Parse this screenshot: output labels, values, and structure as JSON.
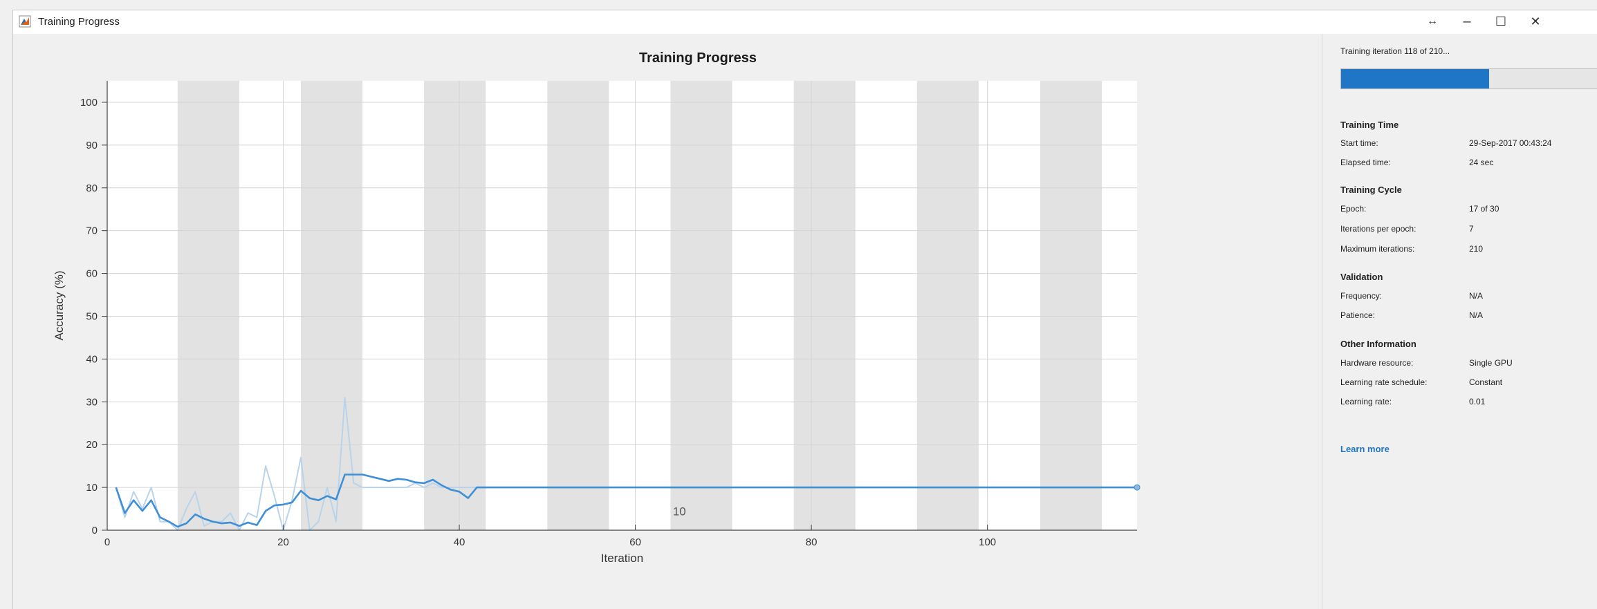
{
  "window": {
    "title": "Training Progress",
    "controls": {
      "resize": "↔",
      "minimize": "–",
      "maximize": "☐",
      "close": "✕"
    }
  },
  "plot": {
    "title": "Training Progress"
  },
  "chart_data": {
    "type": "line",
    "title": "Training Progress",
    "xlabel": "Iteration",
    "ylabel": "Accuracy (%)",
    "xlim": [
      0,
      117
    ],
    "ylim": [
      0,
      105
    ],
    "xticks": [
      0,
      20,
      40,
      60,
      80,
      100
    ],
    "yticks": [
      0,
      10,
      20,
      30,
      40,
      50,
      60,
      70,
      80,
      90,
      100
    ],
    "grid": true,
    "epoch_length": 7,
    "epoch_shading": "alternating gray bands per epoch",
    "annotation": "10",
    "annotation_x": 65,
    "annotation_y": 3.5,
    "colors": {
      "smoothed": "#3e8fd6",
      "raw": "#b8d3ea",
      "band": "#e2e2e2",
      "grid": "#d4d4d4"
    },
    "series": [
      {
        "name": "",
        "style": "raw",
        "x": [
          1,
          2,
          3,
          4,
          5,
          6,
          7,
          8,
          9,
          10,
          11,
          12,
          13,
          14,
          15,
          16,
          17,
          18,
          19,
          20,
          21,
          22,
          23,
          24,
          25,
          26,
          27,
          28,
          29,
          30,
          31,
          32,
          33,
          34,
          35,
          36,
          37,
          38,
          39,
          40,
          41,
          42,
          43,
          44,
          45,
          50,
          55,
          60,
          65,
          70,
          75,
          80,
          85,
          90,
          95,
          100,
          105,
          110,
          115,
          117
        ],
        "y": [
          10,
          3,
          9,
          5,
          10,
          2,
          2,
          0,
          5,
          9,
          1,
          2,
          2,
          4,
          0,
          4,
          3,
          15,
          8,
          0,
          7,
          17,
          0,
          2,
          10,
          2,
          31,
          11,
          10,
          10,
          10,
          10,
          10,
          10,
          11,
          10,
          11,
          10,
          10,
          10,
          10,
          10,
          10,
          10,
          10,
          10,
          10,
          10,
          10,
          10,
          10,
          10,
          10,
          10,
          10,
          10,
          10,
          10,
          10,
          10
        ]
      },
      {
        "name": "",
        "style": "smoothed",
        "x": [
          1,
          2,
          3,
          4,
          5,
          6,
          7,
          8,
          9,
          10,
          11,
          12,
          13,
          14,
          15,
          16,
          17,
          18,
          19,
          20,
          21,
          22,
          23,
          24,
          25,
          26,
          27,
          28,
          29,
          30,
          31,
          32,
          33,
          34,
          35,
          36,
          37,
          38,
          39,
          40,
          41,
          42,
          43,
          44,
          45,
          50,
          55,
          60,
          65,
          70,
          75,
          80,
          85,
          90,
          95,
          100,
          105,
          110,
          115,
          117
        ],
        "y": [
          10,
          4,
          7,
          4.5,
          7,
          3,
          2,
          0.8,
          1.6,
          3.7,
          2.7,
          2,
          1.6,
          1.8,
          1,
          1.8,
          1.2,
          4.5,
          5.8,
          6,
          6.5,
          9.2,
          7.5,
          7,
          8,
          7.2,
          13,
          13,
          13,
          12.5,
          12,
          11.5,
          12,
          11.8,
          11.2,
          11,
          11.8,
          10.5,
          9.5,
          9,
          7.5,
          10,
          10,
          10,
          10,
          10,
          10,
          10,
          10,
          10,
          10,
          10,
          10,
          10,
          10,
          10,
          10,
          10,
          10,
          10
        ]
      }
    ]
  },
  "side": {
    "status": "Training iteration 118 of 210...",
    "progress_fraction": 0.5619,
    "sections": {
      "time_head": "Training Time",
      "start_label": "Start time:",
      "start_value": "29-Sep-2017 00:43:24",
      "elapsed_label": "Elapsed time:",
      "elapsed_value": "24 sec",
      "cycle_head": "Training Cycle",
      "epoch_label": "Epoch:",
      "epoch_value": "17 of 30",
      "ipe_label": "Iterations per epoch:",
      "ipe_value": "7",
      "maxit_label": "Maximum iterations:",
      "maxit_value": "210",
      "val_head": "Validation",
      "freq_label": "Frequency:",
      "freq_value": "N/A",
      "pat_label": "Patience:",
      "pat_value": "N/A",
      "other_head": "Other Information",
      "hw_label": "Hardware resource:",
      "hw_value": "Single GPU",
      "lrs_label": "Learning rate schedule:",
      "lrs_value": "Constant",
      "lr_label": "Learning rate:",
      "lr_value": "0.01"
    },
    "learn_more": "Learn more"
  }
}
